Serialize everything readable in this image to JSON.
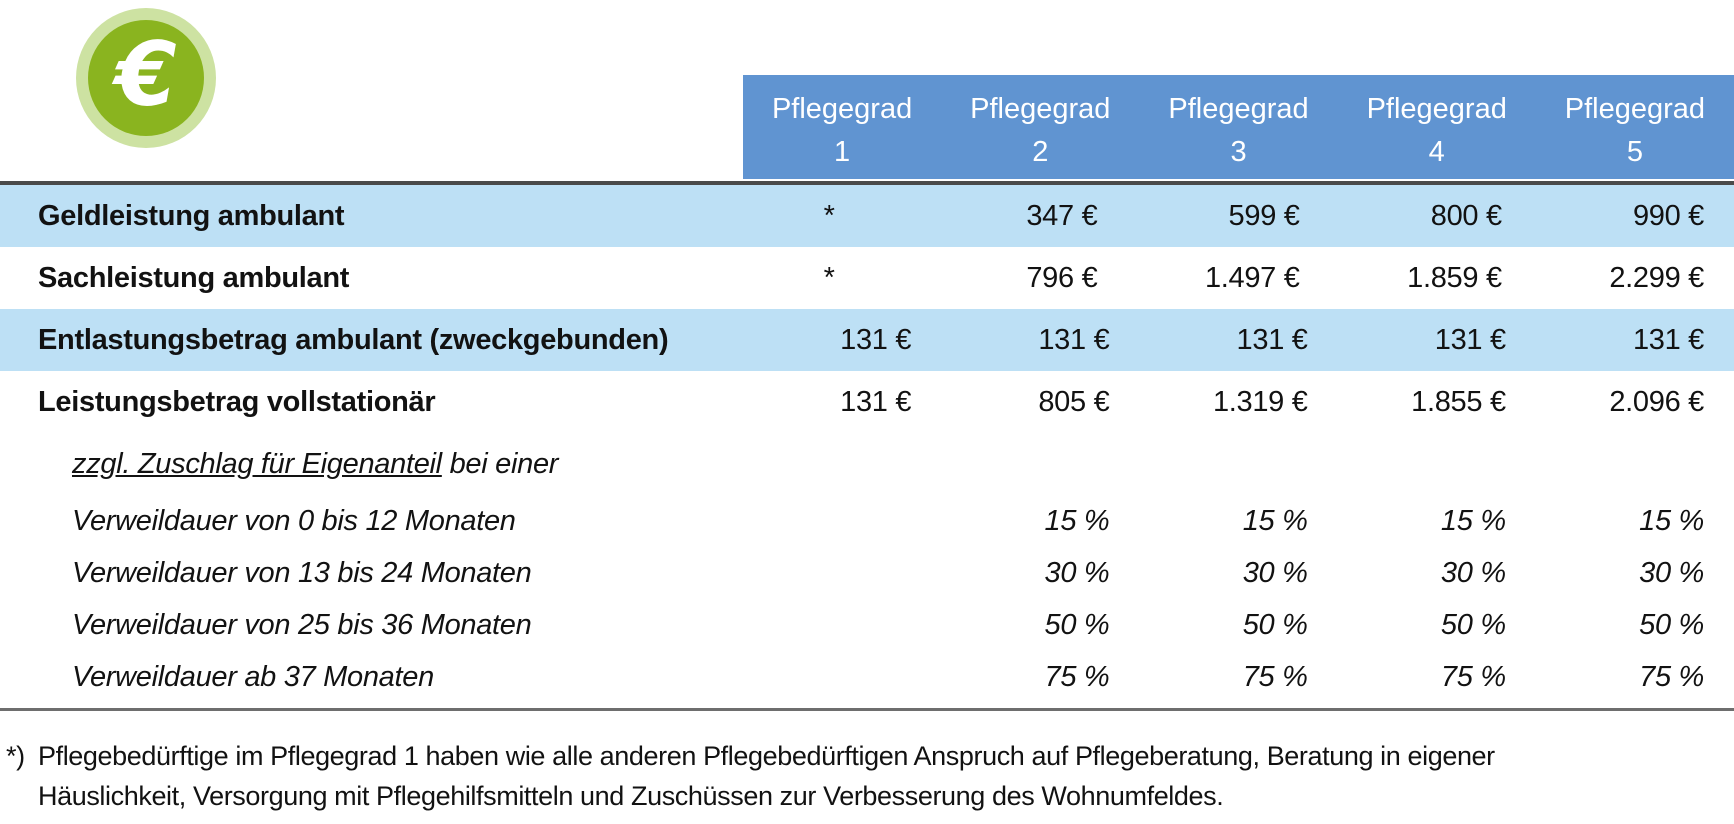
{
  "icon": {
    "glyph": "€"
  },
  "colors": {
    "header_bg": "#6094d1",
    "header_text": "#ffffff",
    "row_highlight": "#bde0f5",
    "rule_dark": "#4a4a4a",
    "rule_light": "#6e6e6e",
    "icon_outer": "#cde2a2",
    "icon_inner": "#8ab41f"
  },
  "table": {
    "column_header_label": "Pflegegrad",
    "column_numbers": [
      "1",
      "2",
      "3",
      "4",
      "5"
    ],
    "rows": [
      {
        "type": "main",
        "highlight": true,
        "label": "Geldleistung ambulant",
        "values": [
          "*",
          "347 €",
          "599 €",
          "800 €",
          "990 €"
        ]
      },
      {
        "type": "main",
        "highlight": false,
        "label": "Sachleistung ambulant",
        "values": [
          "*",
          "796 €",
          "1.497 €",
          "1.859 €",
          "2.299 €"
        ]
      },
      {
        "type": "main",
        "highlight": true,
        "label": "Entlastungsbetrag ambulant (zweckgebunden)",
        "values": [
          "131 €",
          "131 €",
          "131 €",
          "131 €",
          "131 €"
        ]
      },
      {
        "type": "main",
        "highlight": false,
        "label": "Leistungsbetrag vollstationär",
        "values": [
          "131 €",
          "805 €",
          "1.319 €",
          "1.855 €",
          "2.096 €"
        ]
      },
      {
        "type": "sub",
        "highlight": false,
        "label_underlined": "zzgl. Zuschlag für Eigenanteil",
        "label_rest": " bei einer",
        "values": [
          "",
          "",
          "",
          "",
          ""
        ]
      },
      {
        "type": "sub",
        "highlight": false,
        "label": "Verweildauer von 0 bis 12 Monaten",
        "values": [
          "",
          "15 %",
          "15 %",
          "15 %",
          "15 %"
        ]
      },
      {
        "type": "sub",
        "highlight": false,
        "label": "Verweildauer von 13 bis 24 Monaten",
        "values": [
          "",
          "30 %",
          "30 %",
          "30 %",
          "30 %"
        ]
      },
      {
        "type": "sub",
        "highlight": false,
        "label": "Verweildauer von 25 bis 36 Monaten",
        "values": [
          "",
          "50 %",
          "50 %",
          "50 %",
          "50 %"
        ]
      },
      {
        "type": "sub",
        "highlight": false,
        "label": "Verweildauer ab 37 Monaten",
        "values": [
          "",
          "75 %",
          "75 %",
          "75 %",
          "75 %"
        ]
      }
    ]
  },
  "footnote": {
    "marker": "*)",
    "lines": [
      "Pflegebedürftige im Pflegegrad 1 haben wie alle anderen Pflegebedürftigen Anspruch auf Pflegeberatung, Beratung in eigener",
      "Häuslichkeit, Versorgung mit Pflegehilfsmitteln und Zuschüssen zur Verbesserung des Wohnumfeldes."
    ]
  }
}
